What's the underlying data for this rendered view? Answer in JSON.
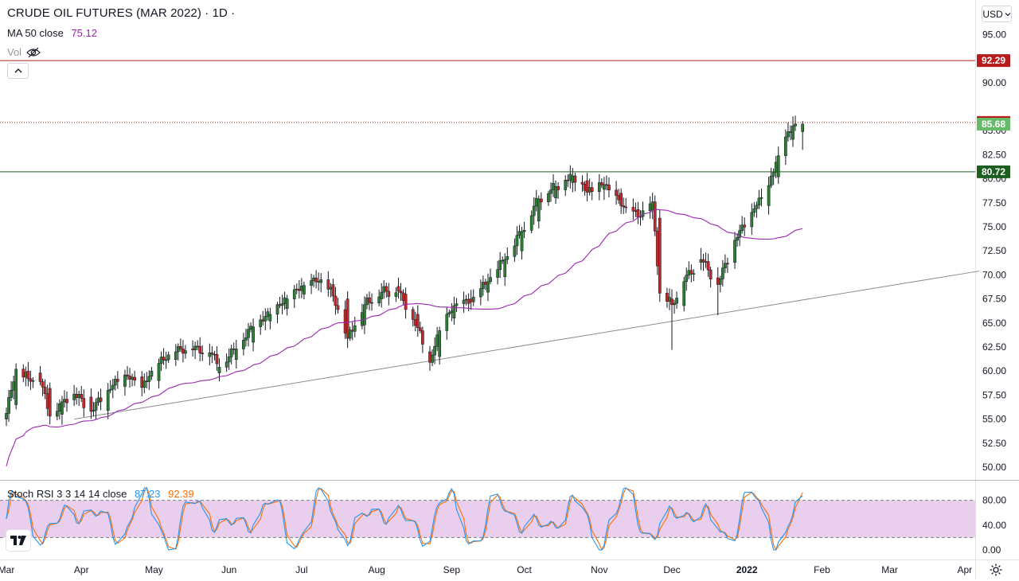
{
  "header": {
    "title": "CRUDE OIL FUTURES (MAR 2022) · 1D ·",
    "ma_label": "MA 50 close",
    "ma_value": "75.12",
    "vol_label": "Vol",
    "currency_button": "USD"
  },
  "stoch": {
    "label": "Stoch RSI 3 3 14 14 close",
    "k_value": "87.23",
    "d_value": "92.39"
  },
  "colors": {
    "up": "#26a69a",
    "down": "#ef5350",
    "candle_up": "#2e7d32",
    "candle_down": "#c62828",
    "ma": "#9c27b0",
    "k_line": "#2196f3",
    "d_line": "#ff6d00",
    "band_fill": "#e1bee7",
    "resistance": "#b71c1c",
    "support": "#1b5e20",
    "last_price": "#66bb6a"
  },
  "chart_data": [
    {
      "type": "candlestick",
      "title": "CRUDE OIL FUTURES (MAR 2022) · 1D ·",
      "y_ticks": [
        "50.00",
        "52.50",
        "55.00",
        "57.50",
        "60.00",
        "62.50",
        "65.00",
        "67.50",
        "70.00",
        "72.50",
        "75.00",
        "77.50",
        "80.00",
        "82.50",
        "85.00",
        "90.00",
        "95.00"
      ],
      "ylim": [
        48.5,
        97.5
      ],
      "x_ticks": [
        "Mar",
        "Apr",
        "May",
        "Jun",
        "Jul",
        "Aug",
        "Sep",
        "Oct",
        "Nov",
        "Dec",
        "2022",
        "Feb",
        "Mar",
        "Apr"
      ],
      "candles_sampled": [
        [
          "2021-03-01",
          55.0,
          56.2,
          54.3,
          55.6
        ],
        [
          "2021-03-05",
          56.5,
          60.8,
          56.2,
          60.2
        ],
        [
          "2021-03-10",
          60.0,
          60.6,
          58.4,
          59.2
        ],
        [
          "2021-03-15",
          59.8,
          60.5,
          58.5,
          58.9
        ],
        [
          "2021-03-19",
          58.2,
          58.8,
          54.9,
          55.3
        ],
        [
          "2021-03-24",
          55.5,
          57.4,
          54.4,
          56.8
        ],
        [
          "2021-03-29",
          57.0,
          58.3,
          56.5,
          57.6
        ],
        [
          "2021-04-05",
          57.3,
          57.8,
          55.2,
          55.8
        ],
        [
          "2021-04-12",
          55.9,
          58.4,
          55.7,
          58.0
        ],
        [
          "2021-04-19",
          58.4,
          60.1,
          58.0,
          59.6
        ],
        [
          "2021-04-26",
          59.4,
          60.0,
          57.8,
          58.3
        ],
        [
          "2021-05-03",
          59.0,
          61.2,
          58.8,
          60.8
        ],
        [
          "2021-05-10",
          61.2,
          62.8,
          60.9,
          62.0
        ],
        [
          "2021-05-17",
          62.3,
          63.0,
          61.5,
          62.2
        ],
        [
          "2021-05-24",
          61.5,
          62.4,
          60.6,
          61.9
        ],
        [
          "2021-05-28",
          59.8,
          61.0,
          59.0,
          60.4
        ],
        [
          "2021-06-04",
          61.2,
          62.7,
          60.8,
          62.3
        ],
        [
          "2021-06-11",
          63.0,
          65.0,
          62.6,
          64.6
        ],
        [
          "2021-06-18",
          65.2,
          66.3,
          64.8,
          65.9
        ],
        [
          "2021-06-25",
          66.5,
          67.9,
          66.1,
          67.5
        ],
        [
          "2021-07-02",
          68.0,
          69.3,
          67.6,
          68.9
        ],
        [
          "2021-07-09",
          69.2,
          70.2,
          68.2,
          69.5
        ],
        [
          "2021-07-14",
          69.0,
          69.6,
          67.2,
          67.8
        ],
        [
          "2021-07-20",
          67.5,
          68.3,
          62.4,
          63.4
        ],
        [
          "2021-07-27",
          64.8,
          67.3,
          64.3,
          66.9
        ],
        [
          "2021-08-03",
          67.5,
          68.6,
          66.8,
          68.2
        ],
        [
          "2021-08-10",
          68.8,
          69.4,
          67.8,
          68.3
        ],
        [
          "2021-08-13",
          68.0,
          68.5,
          65.6,
          66.4
        ],
        [
          "2021-08-18",
          65.9,
          66.6,
          63.8,
          64.5
        ],
        [
          "2021-08-23",
          62.0,
          62.6,
          60.3,
          60.9
        ],
        [
          "2021-08-27",
          61.5,
          64.6,
          61.2,
          64.2
        ],
        [
          "2021-09-02",
          65.5,
          67.2,
          65.0,
          66.8
        ],
        [
          "2021-09-09",
          67.5,
          68.4,
          66.6,
          67.2
        ],
        [
          "2021-09-16",
          68.2,
          69.6,
          67.9,
          69.3
        ],
        [
          "2021-09-23",
          69.8,
          71.8,
          69.5,
          71.6
        ],
        [
          "2021-09-30",
          72.5,
          75.0,
          72.0,
          74.5
        ],
        [
          "2021-10-07",
          75.6,
          78.2,
          75.1,
          77.9
        ],
        [
          "2021-10-14",
          78.0,
          79.8,
          77.4,
          79.2
        ],
        [
          "2021-10-21",
          79.6,
          80.7,
          78.6,
          80.3
        ],
        [
          "2021-10-27",
          79.8,
          80.3,
          77.9,
          78.6
        ],
        [
          "2021-11-03",
          78.9,
          80.2,
          77.8,
          79.4
        ],
        [
          "2021-11-10",
          78.5,
          79.0,
          76.6,
          77.2
        ],
        [
          "2021-11-17",
          76.8,
          77.6,
          75.6,
          76.0
        ],
        [
          "2021-11-23",
          76.8,
          78.0,
          75.8,
          77.6
        ],
        [
          "2021-11-26",
          75.9,
          76.2,
          67.2,
          68.1
        ],
        [
          "2021-12-01",
          67.5,
          68.5,
          62.2,
          66.9
        ],
        [
          "2021-12-06",
          66.8,
          69.8,
          66.2,
          69.3
        ],
        [
          "2021-12-13",
          71.3,
          72.8,
          70.5,
          71.6
        ],
        [
          "2021-12-20",
          69.7,
          70.8,
          65.8,
          69.0
        ],
        [
          "2021-12-27",
          71.3,
          74.0,
          70.8,
          73.6
        ],
        [
          "2022-01-03",
          75.0,
          76.9,
          74.3,
          76.5
        ],
        [
          "2022-01-10",
          77.2,
          79.8,
          76.8,
          79.3
        ],
        [
          "2022-01-14",
          80.2,
          82.8,
          79.9,
          82.4
        ],
        [
          "2022-01-20",
          84.1,
          86.5,
          83.6,
          85.5
        ],
        [
          "2022-01-24",
          84.9,
          86.0,
          83.0,
          85.68
        ]
      ],
      "ma50_label": "MA 50 close",
      "horizontal_levels": [
        {
          "value": 92.29,
          "label": "92.29",
          "style": "resistance"
        },
        {
          "value": 85.85,
          "label": "85.85",
          "style": "resistance-dotted"
        },
        {
          "value": 85.68,
          "label": "85.68",
          "style": "last-price"
        },
        {
          "value": 80.72,
          "label": "80.72",
          "style": "support"
        }
      ],
      "trendline": {
        "from": [
          "2021-03-29",
          55.0
        ],
        "to": [
          "2022-04-07",
          70.4
        ]
      }
    },
    {
      "type": "line",
      "title": "Stoch RSI 3 3 14 14 close",
      "y_ticks": [
        "0.00",
        "40.00",
        "80.00"
      ],
      "ylim": [
        -10,
        115
      ],
      "bands": [
        20,
        80
      ],
      "series": [
        {
          "name": "K",
          "last": 87.23
        },
        {
          "name": "D",
          "last": 92.39
        }
      ]
    }
  ]
}
